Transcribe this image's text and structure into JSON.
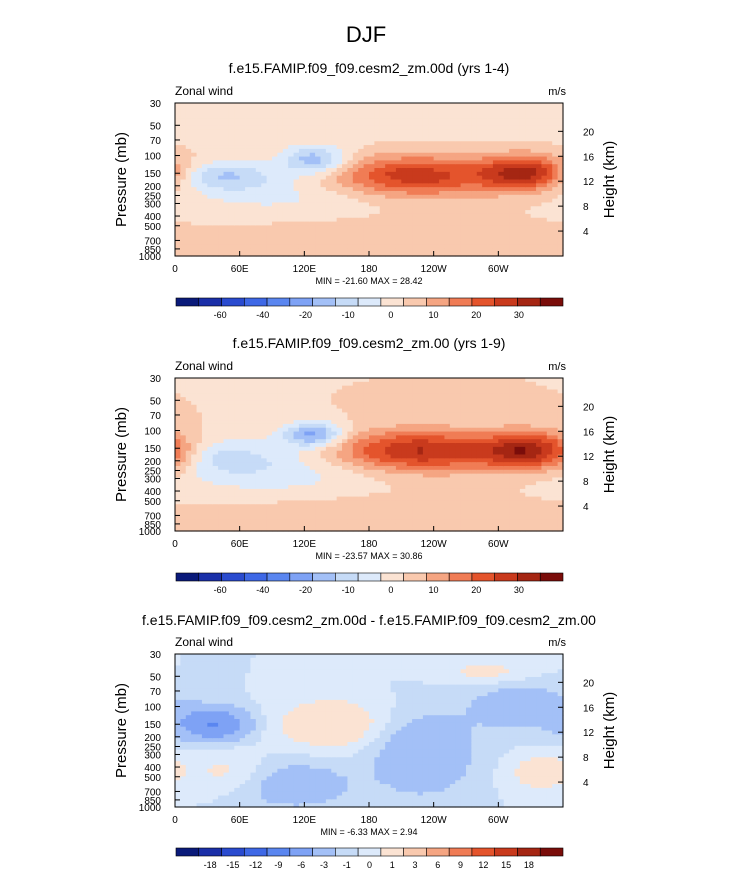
{
  "figure": {
    "title": "DJF"
  },
  "colormaps": {
    "main": [
      "#0a1a7a",
      "#1a2fa8",
      "#2a4bcf",
      "#3e68e6",
      "#5a86f0",
      "#7ea2f5",
      "#a3c0f7",
      "#c6dbf7",
      "#ddeafb",
      "#fbe3d3",
      "#f9c9ae",
      "#f5a582",
      "#f07c55",
      "#e4542c",
      "#c93a1d",
      "#a52613",
      "#7a0d0a"
    ],
    "diff": [
      "#0a1a7a",
      "#1a2fa8",
      "#2a4bcf",
      "#3e68e6",
      "#5a86f0",
      "#7ea2f5",
      "#a3c0f7",
      "#c6dbf7",
      "#ddeafb",
      "#fbe3d3",
      "#f9c9ae",
      "#f5a582",
      "#f07c55",
      "#e4542c",
      "#c93a1d",
      "#a52613",
      "#7a0d0a"
    ]
  },
  "chart_data": [
    {
      "type": "heatmap",
      "title": "f.e15.FAMIP.f09_f09.cesm2_zm.00d (yrs 1-4)",
      "left_label": "Zonal wind",
      "right_label": "m/s",
      "ylabel": "Pressure (mb)",
      "ylabel_right": "Height (km)",
      "yticks": [
        30,
        50,
        70,
        100,
        150,
        200,
        250,
        300,
        400,
        500,
        700,
        850,
        1000
      ],
      "yticks_right": [
        20,
        16,
        12,
        8,
        4
      ],
      "ylim": [
        30,
        1000
      ],
      "xticklabels": [
        "0",
        "60E",
        "120E",
        "180",
        "120W",
        "60W"
      ],
      "xticks_deg": [
        0,
        60,
        120,
        180,
        240,
        300
      ],
      "xlim": [
        0,
        360
      ],
      "stats": "MIN = -21.60  MAX = 28.42",
      "min": -21.6,
      "max": 28.42,
      "colorbar": "main",
      "levels": [
        -70,
        -65,
        -60,
        -50,
        -40,
        -30,
        -20,
        -15,
        -10,
        -5,
        0,
        5,
        10,
        15,
        20,
        25,
        30
      ],
      "colorbar_labels": [
        "-60",
        "-40",
        "-20",
        "-10",
        "0",
        "10",
        "20",
        "30"
      ],
      "features": [
        {
          "lon": 220,
          "p": 160,
          "amp": 24,
          "slon": 55,
          "sp": 0.32
        },
        {
          "lon": 325,
          "p": 150,
          "amp": 26,
          "slon": 28,
          "sp": 0.28
        },
        {
          "lon": 130,
          "p": 110,
          "amp": -18,
          "slon": 22,
          "sp": 0.22
        },
        {
          "lon": 45,
          "p": 160,
          "amp": -12,
          "slon": 30,
          "sp": 0.22
        },
        {
          "lon": 95,
          "p": 220,
          "amp": -7,
          "slon": 70,
          "sp": 0.45
        },
        {
          "lon": 180,
          "p": 700,
          "amp": 4,
          "slon": 120,
          "sp": 0.35
        },
        {
          "lon": 250,
          "p": 50,
          "amp": -4,
          "slon": 120,
          "sp": 0.25
        }
      ]
    },
    {
      "type": "heatmap",
      "title": "f.e15.FAMIP.f09_f09.cesm2_zm.00 (yrs 1-9)",
      "left_label": "Zonal wind",
      "right_label": "m/s",
      "ylabel": "Pressure (mb)",
      "ylabel_right": "Height (km)",
      "yticks": [
        30,
        50,
        70,
        100,
        150,
        200,
        250,
        300,
        400,
        500,
        700,
        850,
        1000
      ],
      "yticks_right": [
        20,
        16,
        12,
        8,
        4
      ],
      "ylim": [
        30,
        1000
      ],
      "xticklabels": [
        "0",
        "60E",
        "120E",
        "180",
        "120W",
        "60W"
      ],
      "xticks_deg": [
        0,
        60,
        120,
        180,
        240,
        300
      ],
      "xlim": [
        0,
        360
      ],
      "stats": "MIN = -23.57  MAX = 30.86",
      "min": -23.57,
      "max": 30.86,
      "colorbar": "main",
      "levels": [
        -70,
        -65,
        -60,
        -50,
        -40,
        -30,
        -20,
        -15,
        -10,
        -5,
        0,
        5,
        10,
        15,
        20,
        25,
        30
      ],
      "colorbar_labels": [
        "-60",
        "-40",
        "-20",
        "-10",
        "0",
        "10",
        "20",
        "30"
      ],
      "features": [
        {
          "lon": 225,
          "p": 160,
          "amp": 26,
          "slon": 55,
          "sp": 0.33
        },
        {
          "lon": 330,
          "p": 160,
          "amp": 28,
          "slon": 30,
          "sp": 0.3
        },
        {
          "lon": 128,
          "p": 110,
          "amp": -22,
          "slon": 20,
          "sp": 0.2
        },
        {
          "lon": 40,
          "p": 180,
          "amp": -8,
          "slon": 40,
          "sp": 0.3
        },
        {
          "lon": 95,
          "p": 250,
          "amp": -8,
          "slon": 70,
          "sp": 0.45
        },
        {
          "lon": 5,
          "p": 200,
          "amp": 4,
          "slon": 12,
          "sp": 0.3
        },
        {
          "lon": 170,
          "p": 700,
          "amp": 4,
          "slon": 110,
          "sp": 0.35
        }
      ]
    },
    {
      "type": "heatmap",
      "title": "f.e15.FAMIP.f09_f09.cesm2_zm.00d - f.e15.FAMIP.f09_f09.cesm2_zm.00",
      "left_label": "Zonal wind",
      "right_label": "m/s",
      "ylabel": "Pressure (mb)",
      "ylabel_right": "Height (km)",
      "yticks": [
        30,
        50,
        70,
        100,
        150,
        200,
        250,
        300,
        400,
        500,
        700,
        850,
        1000
      ],
      "yticks_right": [
        20,
        16,
        12,
        8,
        4
      ],
      "ylim": [
        30,
        1000
      ],
      "xticklabels": [
        "0",
        "60E",
        "120E",
        "180",
        "120W",
        "60W"
      ],
      "xticks_deg": [
        0,
        60,
        120,
        180,
        240,
        300
      ],
      "xlim": [
        0,
        360
      ],
      "stats": "MIN = -6.33  MAX =  2.94",
      "min": -6.33,
      "max": 2.94,
      "colorbar": "diff",
      "levels": [
        -21,
        -18,
        -15,
        -12,
        -9,
        -6,
        -3,
        -1,
        0,
        1,
        3,
        6,
        9,
        12,
        15,
        18,
        21
      ],
      "colorbar_labels": [
        "-18",
        "-15",
        "-12",
        "-9",
        "-6",
        "-3",
        "-1",
        "0",
        "1",
        "3",
        "6",
        "9",
        "12",
        "15",
        "18"
      ],
      "features": [
        {
          "lon": 35,
          "p": 150,
          "amp": -6,
          "slon": 22,
          "sp": 0.25
        },
        {
          "lon": 145,
          "p": 150,
          "amp": 2.5,
          "slon": 35,
          "sp": 0.4
        },
        {
          "lon": 230,
          "p": 300,
          "amp": -3,
          "slon": 30,
          "sp": 0.6
        },
        {
          "lon": 320,
          "p": 100,
          "amp": -2,
          "slon": 35,
          "sp": 0.4
        },
        {
          "lon": 340,
          "p": 450,
          "amp": 2,
          "slon": 20,
          "sp": 0.3
        },
        {
          "lon": 50,
          "p": 450,
          "amp": 1.5,
          "slon": 25,
          "sp": 0.35
        },
        {
          "lon": 110,
          "p": 600,
          "amp": -2,
          "slon": 40,
          "sp": 0.4
        },
        {
          "lon": 290,
          "p": 45,
          "amp": 1.5,
          "slon": 30,
          "sp": 0.2
        }
      ]
    }
  ]
}
